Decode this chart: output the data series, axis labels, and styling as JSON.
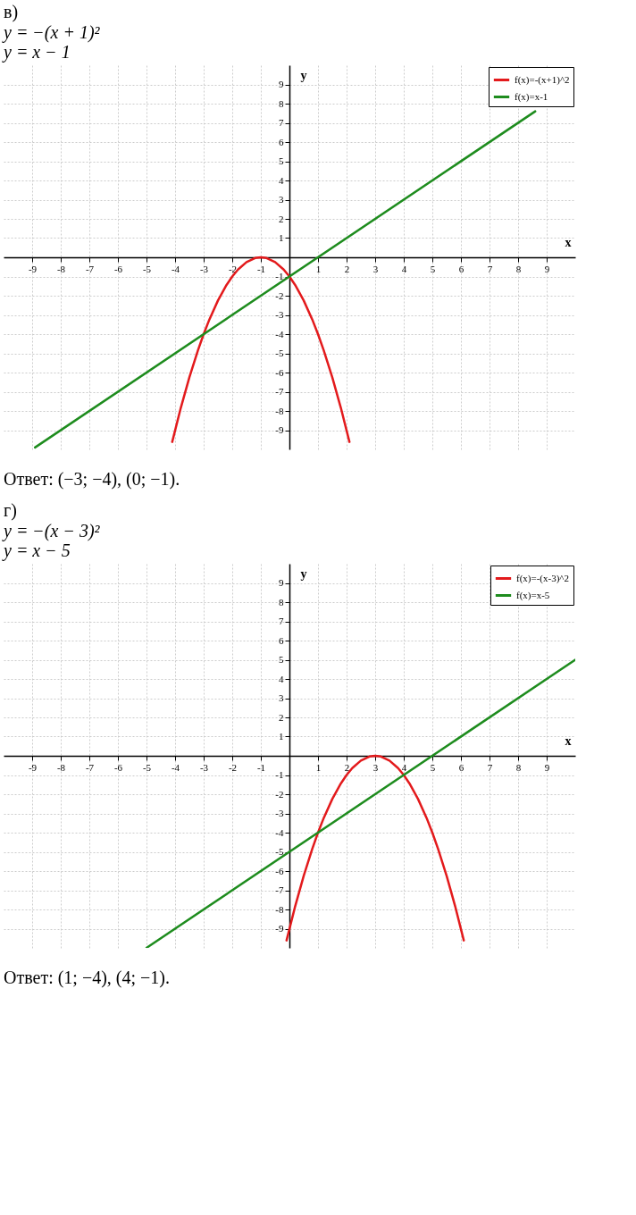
{
  "chart_data": [
    {
      "type": "line",
      "title": "в)",
      "subtitle": "y = −(x + 1)²\ny = x − 1",
      "xlabel": "x",
      "ylabel": "y",
      "xlim": [
        -10,
        10
      ],
      "ylim": [
        -10,
        10
      ],
      "xticks": [
        -9,
        -8,
        -7,
        -6,
        -5,
        -4,
        -3,
        -2,
        -1,
        1,
        2,
        3,
        4,
        5,
        6,
        7,
        8,
        9
      ],
      "yticks": [
        -9,
        -8,
        -7,
        -6,
        -5,
        -4,
        -3,
        -2,
        -1,
        1,
        2,
        3,
        4,
        5,
        6,
        7,
        8,
        9
      ],
      "grid": true,
      "legend": "top right",
      "marker": "none",
      "line_style": "solid",
      "series": [
        {
          "name": "f(x)=-(x+1)^2",
          "color": "#e31a1c",
          "x": [
            -4.1,
            -3.8,
            -3.5,
            -3.2,
            -3,
            -2.8,
            -2.5,
            -2.2,
            -2,
            -1.8,
            -1.5,
            -1.2,
            -1,
            -0.8,
            -0.5,
            -0.2,
            0,
            0.2,
            0.5,
            0.8,
            1,
            1.2,
            1.5,
            1.8,
            2.1
          ],
          "values": [
            -9.61,
            -7.84,
            -6.25,
            -4.84,
            -4,
            -3.24,
            -2.25,
            -1.44,
            -1,
            -0.64,
            -0.25,
            -0.04,
            0,
            -0.04,
            -0.25,
            -0.64,
            -1,
            -1.44,
            -2.25,
            -3.24,
            -4,
            -4.84,
            -6.25,
            -7.84,
            -9.61
          ]
        },
        {
          "name": "f(x)=x-1",
          "color": "#1e8c1e",
          "x": [
            -8.9,
            8.6
          ],
          "values": [
            -9.9,
            7.6
          ]
        }
      ],
      "annotations": [
        "Ответ: (−3; −4), (0; −1)."
      ]
    },
    {
      "type": "line",
      "title": "г)",
      "subtitle": "y = −(x − 3)²\ny = x − 5",
      "xlabel": "x",
      "ylabel": "y",
      "xlim": [
        -10,
        10
      ],
      "ylim": [
        -10,
        10
      ],
      "xticks": [
        -9,
        -8,
        -7,
        -6,
        -5,
        -4,
        -3,
        -2,
        -1,
        1,
        2,
        3,
        4,
        5,
        6,
        7,
        8,
        9
      ],
      "yticks": [
        -9,
        -8,
        -7,
        -6,
        -5,
        -4,
        -3,
        -2,
        -1,
        1,
        2,
        3,
        4,
        5,
        6,
        7,
        8,
        9
      ],
      "grid": true,
      "legend": "top right",
      "marker": "none",
      "line_style": "solid",
      "series": [
        {
          "name": "f(x)=-(x-3)^2",
          "color": "#e31a1c",
          "x": [
            -0.1,
            0.2,
            0.5,
            0.8,
            1,
            1.2,
            1.5,
            1.8,
            2,
            2.2,
            2.5,
            2.8,
            3,
            3.2,
            3.5,
            3.8,
            4,
            4.2,
            4.5,
            4.8,
            5,
            5.2,
            5.5,
            5.8,
            6.1
          ],
          "values": [
            -9.61,
            -7.84,
            -6.25,
            -4.84,
            -4,
            -3.24,
            -2.25,
            -1.44,
            -1,
            -0.64,
            -0.25,
            -0.04,
            0,
            -0.04,
            -0.25,
            -0.64,
            -1,
            -1.44,
            -2.25,
            -3.24,
            -4,
            -4.84,
            -6.25,
            -7.84,
            -9.61
          ]
        },
        {
          "name": "f(x)=x-5",
          "color": "#1e8c1e",
          "x": [
            -5,
            10
          ],
          "values": [
            -10,
            5
          ]
        }
      ],
      "annotations": [
        "Ответ: (1; −4), (4; −1)."
      ]
    }
  ]
}
